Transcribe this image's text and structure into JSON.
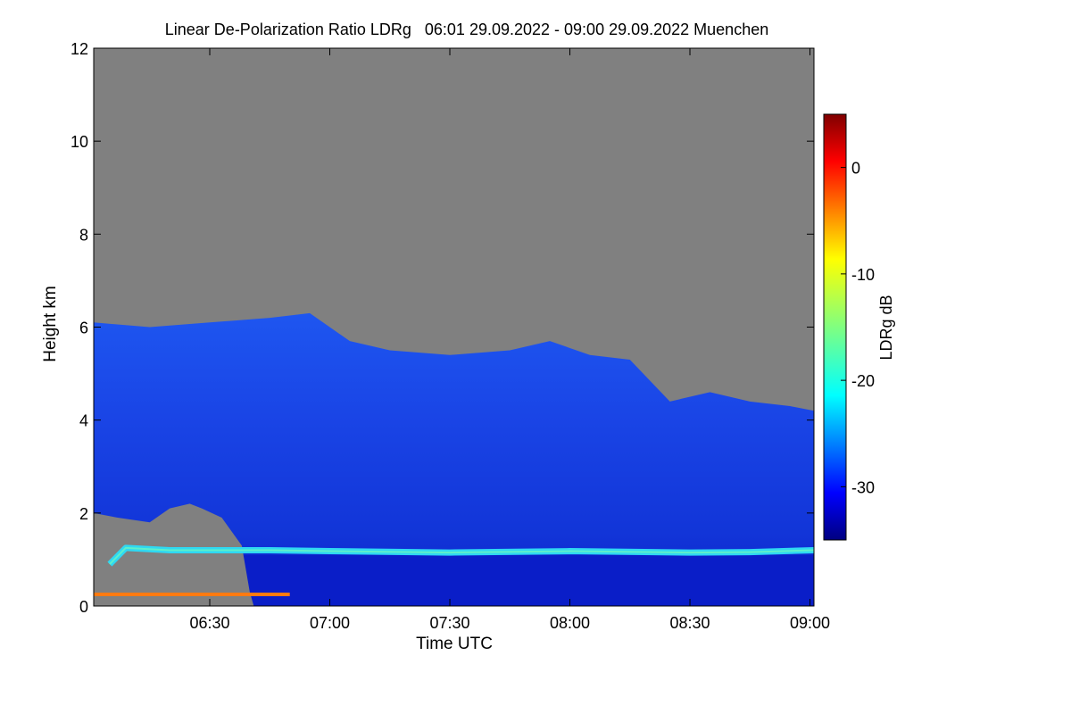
{
  "chart_data": {
    "type": "heatmap",
    "title": "Linear De-Polarization Ratio LDRg   06:01 29.09.2022 - 09:00 29.09.2022 Muenchen",
    "xlabel": "Time UTC",
    "ylabel": "Height km",
    "x_range_minutes": [
      361,
      541
    ],
    "y_range_km": [
      0,
      12
    ],
    "x_ticks": [
      {
        "minute": 390,
        "label": "06:30"
      },
      {
        "minute": 420,
        "label": "07:00"
      },
      {
        "minute": 450,
        "label": "07:30"
      },
      {
        "minute": 480,
        "label": "08:00"
      },
      {
        "minute": 510,
        "label": "08:30"
      },
      {
        "minute": 540,
        "label": "09:00"
      }
    ],
    "y_ticks": [
      {
        "value": 0,
        "label": "0"
      },
      {
        "value": 2,
        "label": "2"
      },
      {
        "value": 4,
        "label": "4"
      },
      {
        "value": 6,
        "label": "6"
      },
      {
        "value": 8,
        "label": "8"
      },
      {
        "value": 10,
        "label": "10"
      },
      {
        "value": 12,
        "label": "12"
      }
    ],
    "colorbar": {
      "label": "LDRg dB",
      "range_db": [
        -35,
        5
      ],
      "ticks": [
        {
          "value": 0,
          "label": "0"
        },
        {
          "value": -10,
          "label": "-10"
        },
        {
          "value": -20,
          "label": "-20"
        },
        {
          "value": -30,
          "label": "-30"
        }
      ]
    },
    "no_signal_color": "#808080",
    "cloud_top_km": [
      {
        "minute": 361,
        "km": 6.1
      },
      {
        "minute": 375,
        "km": 6.0
      },
      {
        "minute": 390,
        "km": 6.1
      },
      {
        "minute": 405,
        "km": 6.2
      },
      {
        "minute": 415,
        "km": 6.3
      },
      {
        "minute": 425,
        "km": 5.7
      },
      {
        "minute": 435,
        "km": 5.5
      },
      {
        "minute": 450,
        "km": 5.4
      },
      {
        "minute": 465,
        "km": 5.5
      },
      {
        "minute": 475,
        "km": 5.7
      },
      {
        "minute": 485,
        "km": 5.4
      },
      {
        "minute": 495,
        "km": 5.3
      },
      {
        "minute": 505,
        "km": 4.4
      },
      {
        "minute": 515,
        "km": 4.6
      },
      {
        "minute": 525,
        "km": 4.4
      },
      {
        "minute": 535,
        "km": 4.3
      },
      {
        "minute": 541,
        "km": 4.2
      }
    ],
    "low_gap_top_km": [
      {
        "minute": 361,
        "km": 2.0
      },
      {
        "minute": 367,
        "km": 1.9
      },
      {
        "minute": 375,
        "km": 1.8
      },
      {
        "minute": 380,
        "km": 2.1
      },
      {
        "minute": 385,
        "km": 2.2
      },
      {
        "minute": 388,
        "km": 2.1
      },
      {
        "minute": 393,
        "km": 1.9
      },
      {
        "minute": 398,
        "km": 1.3
      },
      {
        "minute": 400,
        "km": 0.3
      },
      {
        "minute": 401,
        "km": 0.0
      }
    ],
    "boundary_layer_band_km": [
      {
        "minute": 365,
        "km": 0.9
      },
      {
        "minute": 369,
        "km": 1.25
      },
      {
        "minute": 380,
        "km": 1.2
      },
      {
        "minute": 405,
        "km": 1.2
      },
      {
        "minute": 420,
        "km": 1.18
      },
      {
        "minute": 450,
        "km": 1.15
      },
      {
        "minute": 480,
        "km": 1.18
      },
      {
        "minute": 510,
        "km": 1.15
      },
      {
        "minute": 525,
        "km": 1.16
      },
      {
        "minute": 541,
        "km": 1.2
      }
    ],
    "boundary_layer_band_ldr_db": -22,
    "cloud_ldr_db": -30,
    "near_surface_ldr_db": -2,
    "near_surface_height_km": 0.25,
    "near_surface_minutes": [
      361,
      410
    ]
  }
}
